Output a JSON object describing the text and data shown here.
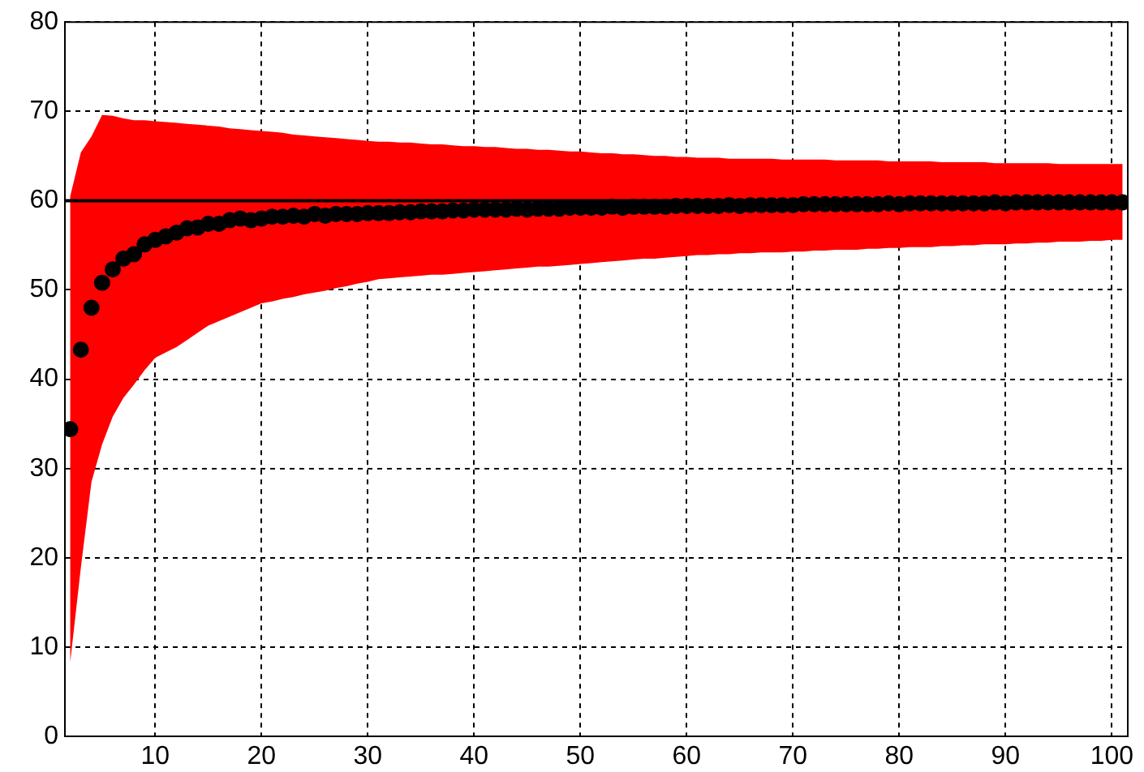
{
  "chart_data": {
    "type": "scatter",
    "xlim": [
      1.5,
      101.5
    ],
    "xticks": [
      10,
      20,
      30,
      40,
      50,
      60,
      70,
      80,
      90,
      100
    ],
    "ylim": [
      0,
      80
    ],
    "yticks": [
      0,
      10,
      20,
      30,
      40,
      50,
      60,
      70,
      80
    ],
    "grid": true,
    "legend": false,
    "marker": "circle",
    "x": [
      2,
      3,
      4,
      5,
      6,
      7,
      8,
      9,
      10,
      11,
      12,
      13,
      14,
      15,
      16,
      17,
      18,
      19,
      20,
      21,
      22,
      23,
      24,
      25,
      26,
      27,
      28,
      29,
      30,
      31,
      32,
      33,
      34,
      35,
      36,
      37,
      38,
      39,
      40,
      41,
      42,
      43,
      44,
      45,
      46,
      47,
      48,
      49,
      50,
      51,
      52,
      53,
      54,
      55,
      56,
      57,
      58,
      59,
      60,
      61,
      62,
      63,
      64,
      65,
      66,
      67,
      68,
      69,
      70,
      71,
      72,
      73,
      74,
      75,
      76,
      77,
      78,
      79,
      80,
      81,
      82,
      83,
      84,
      85,
      86,
      87,
      88,
      89,
      90,
      91,
      92,
      93,
      94,
      95,
      96,
      97,
      98,
      99,
      100,
      101
    ],
    "series": [
      {
        "color": "#000000",
        "values": [
          34.4,
          43.3,
          48.0,
          50.8,
          52.3,
          53.5,
          54.0,
          55.1,
          55.6,
          56.0,
          56.4,
          56.9,
          57.0,
          57.4,
          57.4,
          57.8,
          58.0,
          57.8,
          58.0,
          58.2,
          58.2,
          58.3,
          58.2,
          58.5,
          58.3,
          58.5,
          58.5,
          58.5,
          58.6,
          58.6,
          58.6,
          58.7,
          58.7,
          58.8,
          58.8,
          58.8,
          58.9,
          58.9,
          59.0,
          59.0,
          59.0,
          59.0,
          59.1,
          59.0,
          59.1,
          59.1,
          59.1,
          59.2,
          59.2,
          59.2,
          59.2,
          59.3,
          59.2,
          59.3,
          59.3,
          59.3,
          59.3,
          59.4,
          59.4,
          59.4,
          59.4,
          59.4,
          59.5,
          59.4,
          59.5,
          59.5,
          59.5,
          59.5,
          59.5,
          59.6,
          59.6,
          59.6,
          59.6,
          59.6,
          59.6,
          59.6,
          59.6,
          59.7,
          59.6,
          59.7,
          59.7,
          59.7,
          59.7,
          59.7,
          59.7,
          59.7,
          59.7,
          59.8,
          59.7,
          59.8,
          59.8,
          59.8,
          59.8,
          59.8,
          59.8,
          59.8,
          59.8,
          59.8,
          59.8,
          59.8
        ],
        "upper": [
          60.5,
          65.4,
          67.2,
          69.6,
          69.5,
          69.2,
          69.0,
          69.0,
          68.9,
          68.8,
          68.7,
          68.6,
          68.5,
          68.4,
          68.3,
          68.1,
          68.0,
          67.9,
          67.8,
          67.7,
          67.6,
          67.4,
          67.3,
          67.2,
          67.1,
          67.0,
          66.9,
          66.8,
          66.7,
          66.6,
          66.6,
          66.5,
          66.5,
          66.4,
          66.3,
          66.3,
          66.2,
          66.1,
          66.1,
          66.0,
          66.0,
          65.9,
          65.8,
          65.8,
          65.7,
          65.7,
          65.6,
          65.5,
          65.5,
          65.4,
          65.3,
          65.3,
          65.2,
          65.2,
          65.1,
          65.0,
          65.0,
          64.9,
          64.9,
          64.8,
          64.8,
          64.8,
          64.7,
          64.7,
          64.7,
          64.7,
          64.7,
          64.6,
          64.6,
          64.6,
          64.6,
          64.6,
          64.5,
          64.5,
          64.5,
          64.5,
          64.5,
          64.4,
          64.4,
          64.4,
          64.4,
          64.4,
          64.3,
          64.3,
          64.3,
          64.3,
          64.3,
          64.2,
          64.2,
          64.2,
          64.2,
          64.2,
          64.2,
          64.1,
          64.1,
          64.1,
          64.1,
          64.1,
          64.1,
          64.1
        ],
        "lower": [
          8.3,
          18.9,
          28.5,
          32.7,
          35.8,
          37.9,
          39.4,
          41.0,
          42.4,
          43.0,
          43.6,
          44.4,
          45.2,
          46.0,
          46.5,
          47.0,
          47.5,
          48.0,
          48.5,
          48.7,
          49.0,
          49.2,
          49.5,
          49.7,
          49.9,
          50.2,
          50.4,
          50.7,
          50.9,
          51.2,
          51.3,
          51.4,
          51.5,
          51.6,
          51.7,
          51.7,
          51.8,
          51.9,
          52.0,
          52.1,
          52.2,
          52.3,
          52.4,
          52.5,
          52.6,
          52.6,
          52.7,
          52.8,
          52.9,
          53.0,
          53.1,
          53.2,
          53.3,
          53.4,
          53.5,
          53.5,
          53.6,
          53.7,
          53.8,
          53.9,
          53.9,
          54.0,
          54.0,
          54.1,
          54.1,
          54.2,
          54.2,
          54.2,
          54.3,
          54.3,
          54.4,
          54.4,
          54.5,
          54.5,
          54.5,
          54.6,
          54.6,
          54.7,
          54.7,
          54.8,
          54.8,
          54.8,
          54.9,
          54.9,
          55.0,
          55.0,
          55.1,
          55.1,
          55.1,
          55.2,
          55.2,
          55.3,
          55.3,
          55.4,
          55.4,
          55.4,
          55.5,
          55.5,
          55.6,
          55.6
        ]
      }
    ],
    "ref_lines": [
      {
        "axis": "y",
        "value": 60,
        "color": "#000000",
        "line_style": "solid"
      }
    ]
  }
}
